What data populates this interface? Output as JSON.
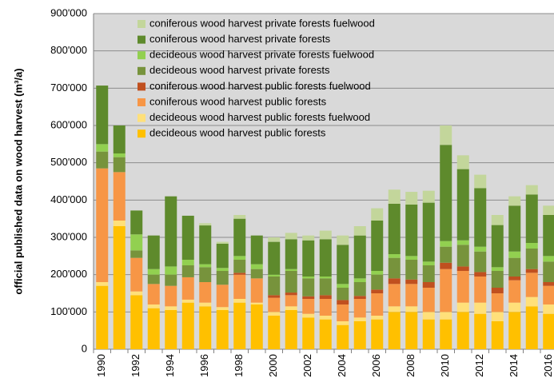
{
  "chart_data": {
    "type": "stacked-bar",
    "y_label": "official published data on wood harvest  (m³/a)",
    "categories": [
      "1990",
      null,
      "1992",
      null,
      "1994",
      null,
      "1996",
      null,
      "1998",
      null,
      "2000",
      null,
      "2002",
      null,
      "2004",
      null,
      "2006",
      null,
      "2008",
      null,
      "2010",
      null,
      "2012",
      null,
      "2014",
      null,
      "2016"
    ],
    "ylim": [
      0,
      900000
    ],
    "yticks": [
      0,
      {
        "value": 100000,
        "label": "100'000"
      },
      {
        "value": 200000,
        "label": "200'000"
      },
      {
        "value": 300000,
        "label": "300'000"
      },
      {
        "value": 400000,
        "label": "400'000"
      },
      {
        "value": 500000,
        "label": "500'000"
      },
      {
        "value": 600000,
        "label": "600'000"
      },
      {
        "value": 700000,
        "label": "700'000"
      },
      {
        "value": 800000,
        "label": "800'000"
      },
      {
        "value": 900000,
        "label": "900'000"
      }
    ],
    "grid": true,
    "legend": "top-left",
    "series": [
      {
        "name": "decideous wood harvest public forests",
        "color": "#FFC000",
        "values": [
          170000,
          330000,
          145000,
          110000,
          105000,
          125000,
          115000,
          105000,
          125000,
          120000,
          90000,
          105000,
          85000,
          80000,
          65000,
          75000,
          80000,
          100000,
          100000,
          80000,
          80000,
          100000,
          95000,
          75000,
          100000,
          115000,
          95000
        ]
      },
      {
        "name": "decideous wood harvest public forests  fuelwood",
        "color": "#FFE07A",
        "values": [
          10000,
          15000,
          10000,
          10000,
          10000,
          8000,
          10000,
          8000,
          10000,
          5000,
          10000,
          10000,
          10000,
          10000,
          10000,
          10000,
          10000,
          15000,
          15000,
          20000,
          20000,
          25000,
          30000,
          25000,
          25000,
          25000,
          25000
        ]
      },
      {
        "name": "coniferous wood harvest public forests",
        "color": "#F79646",
        "values": [
          305000,
          130000,
          90000,
          55000,
          55000,
          60000,
          55000,
          60000,
          65000,
          65000,
          38000,
          30000,
          40000,
          45000,
          45000,
          50000,
          60000,
          60000,
          60000,
          65000,
          115000,
          85000,
          70000,
          50000,
          60000,
          65000,
          50000
        ]
      },
      {
        "name": "coniferous wood harvest public forests fuelwood",
        "color": "#C0501F",
        "values": [
          0,
          0,
          0,
          0,
          0,
          0,
          0,
          0,
          5000,
          0,
          7000,
          7000,
          7000,
          10000,
          12000,
          8000,
          10000,
          15000,
          12000,
          15000,
          17000,
          12000,
          12000,
          15000,
          10000,
          10000,
          10000
        ]
      },
      {
        "name": "decideous wood harvest private forests",
        "color": "#77933C",
        "values": [
          45000,
          40000,
          20000,
          25000,
          30000,
          32000,
          40000,
          37000,
          35000,
          25000,
          50000,
          58000,
          48000,
          45000,
          33000,
          37000,
          40000,
          55000,
          53000,
          45000,
          43000,
          58000,
          55000,
          45000,
          50000,
          55000,
          55000
        ]
      },
      {
        "name": "decideous wood harvest private forests  fuelwood",
        "color": "#92D050",
        "values": [
          20000,
          10000,
          43000,
          15000,
          22000,
          15000,
          8000,
          8000,
          10000,
          13000,
          5000,
          5000,
          5000,
          5000,
          10000,
          10000,
          10000,
          10000,
          10000,
          10000,
          15000,
          12000,
          13000,
          10000,
          17000,
          15000,
          15000
        ]
      },
      {
        "name": "coniferous wood harvest private forests",
        "color": "#5E8A2C",
        "values": [
          157000,
          75000,
          64000,
          90000,
          188000,
          118000,
          104000,
          65000,
          100000,
          77000,
          88000,
          80000,
          97000,
          100000,
          105000,
          115000,
          135000,
          135000,
          138000,
          158000,
          258000,
          191000,
          157000,
          113000,
          123000,
          130000,
          110000
        ]
      },
      {
        "name": "coniferous wood harvest private forests fuelwood",
        "color": "#C3D69B",
        "values": [
          0,
          0,
          0,
          0,
          0,
          0,
          6000,
          5000,
          10000,
          0,
          12000,
          17000,
          13000,
          23000,
          25000,
          25000,
          33000,
          38000,
          34000,
          32000,
          52000,
          37000,
          36000,
          27000,
          25000,
          25000,
          25000
        ]
      }
    ]
  }
}
